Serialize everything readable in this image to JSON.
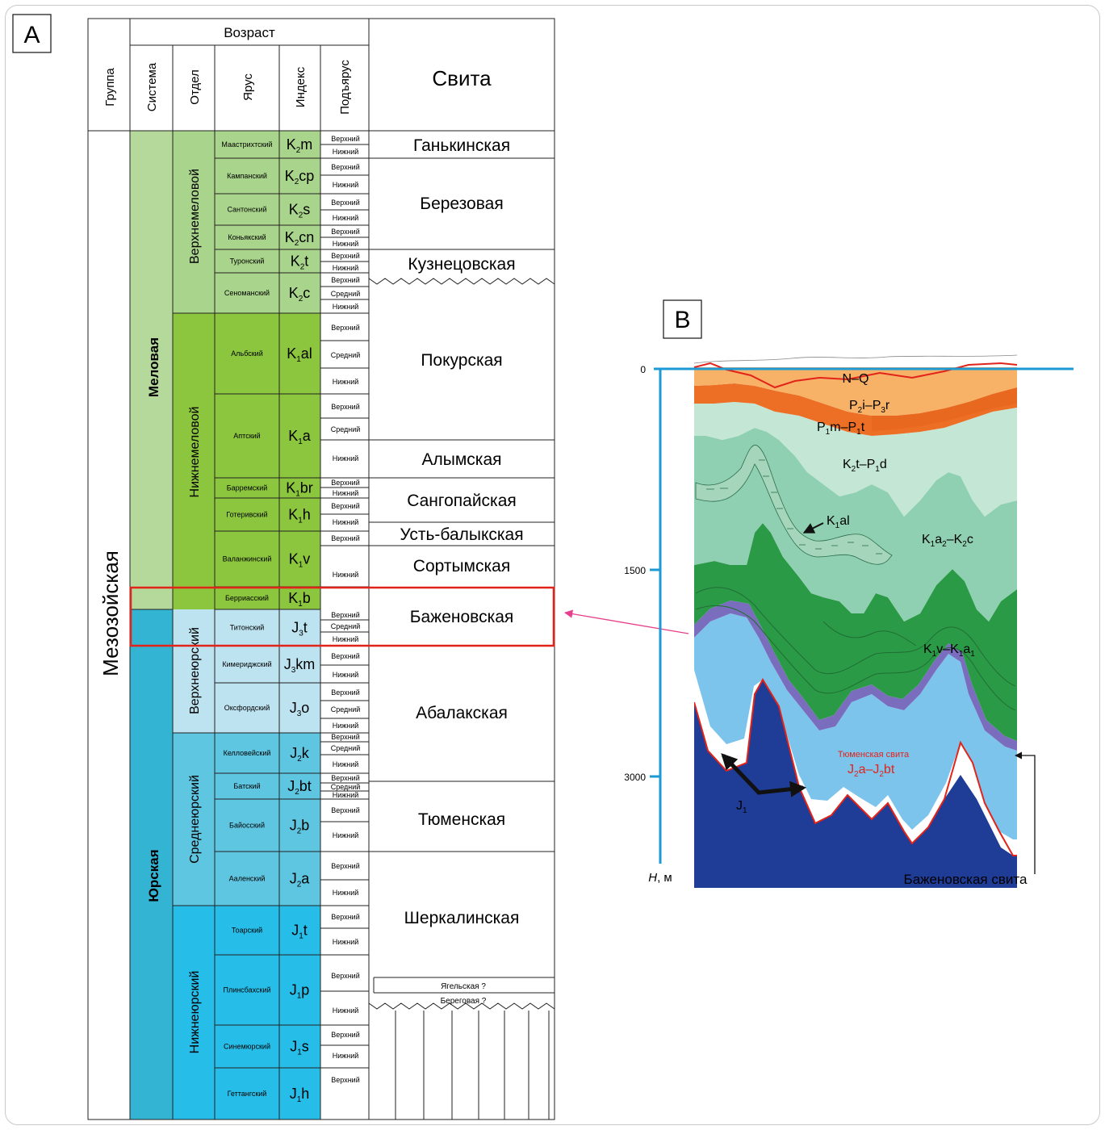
{
  "panel_a": {
    "label": "A",
    "header": {
      "age": "Возраст",
      "group": "Группа",
      "system": "Система",
      "series": "Отдел",
      "stage": "Ярус",
      "index": "Индекс",
      "substage": "Подъярус",
      "suite": "Свита"
    },
    "group_name": "Мезозойская",
    "systems": [
      {
        "name": "Меловая",
        "color": "#b5d99a"
      },
      {
        "name": "Юрская",
        "color": "#34b4d3"
      }
    ],
    "series": [
      {
        "name": "Верхнемеловой",
        "color": "#a9d48b"
      },
      {
        "name": "Нижнемеловой",
        "color": "#8cc63f"
      },
      {
        "name": "Верхнеюрский",
        "color": "#bde3f0"
      },
      {
        "name": "Среднеюрский",
        "color": "#5fc6e2"
      },
      {
        "name": "Нижнеюрский",
        "color": "#26bde8"
      }
    ],
    "stages": [
      {
        "name": "Маастрихтский",
        "idx": "K",
        "sub": "2",
        "rest": "m"
      },
      {
        "name": "Кампанский",
        "idx": "K",
        "sub": "2",
        "rest": "cp"
      },
      {
        "name": "Сантонский",
        "idx": "K",
        "sub": "2",
        "rest": "s"
      },
      {
        "name": "Коньякский",
        "idx": "K",
        "sub": "2",
        "rest": "cn"
      },
      {
        "name": "Туронский",
        "idx": "K",
        "sub": "2",
        "rest": "t"
      },
      {
        "name": "Сеноманский",
        "idx": "K",
        "sub": "2",
        "rest": "c"
      },
      {
        "name": "Альбский",
        "idx": "K",
        "sub": "1",
        "rest": "al"
      },
      {
        "name": "Аптский",
        "idx": "K",
        "sub": "1",
        "rest": "a"
      },
      {
        "name": "Барремский",
        "idx": "K",
        "sub": "1",
        "rest": "br"
      },
      {
        "name": "Готеривский",
        "idx": "K",
        "sub": "1",
        "rest": "h"
      },
      {
        "name": "Валанжинский",
        "idx": "K",
        "sub": "1",
        "rest": "v"
      },
      {
        "name": "Берриасский",
        "idx": "K",
        "sub": "1",
        "rest": "b"
      },
      {
        "name": "Титонский",
        "idx": "J",
        "sub": "3",
        "rest": "t"
      },
      {
        "name": "Кимериджский",
        "idx": "J",
        "sub": "3",
        "rest": "km"
      },
      {
        "name": "Оксфордский",
        "idx": "J",
        "sub": "3",
        "rest": "o"
      },
      {
        "name": "Келловейский",
        "idx": "J",
        "sub": "2",
        "rest": "k"
      },
      {
        "name": "Батский",
        "idx": "J",
        "sub": "2",
        "rest": "bt"
      },
      {
        "name": "Байосский",
        "idx": "J",
        "sub": "2",
        "rest": "b"
      },
      {
        "name": "Ааленский",
        "idx": "J",
        "sub": "2",
        "rest": "a"
      },
      {
        "name": "Тоарский",
        "idx": "J",
        "sub": "1",
        "rest": "t"
      },
      {
        "name": "Плинсбахский",
        "idx": "J",
        "sub": "1",
        "rest": "p"
      },
      {
        "name": "Синемюрский",
        "idx": "J",
        "sub": "1",
        "rest": "s"
      },
      {
        "name": "Геттангский",
        "idx": "J",
        "sub": "1",
        "rest": "h"
      }
    ],
    "substages": {
      "upper": "Верхний",
      "middle": "Средний",
      "lower": "Нижний"
    },
    "suites": [
      "Ганькинская",
      "Березовая",
      "Кузнецовская",
      "Покурская",
      "Алымская",
      "Сангопайская",
      "Усть-балыкская",
      "Сортымская",
      "Баженовская",
      "Абалакская",
      "Тюменская",
      "Шеркалинская",
      "Ягельская ?",
      "Береговая ?"
    ]
  },
  "panel_b": {
    "label": "B",
    "axis_ticks": [
      "0",
      "1500",
      "3000"
    ],
    "axis_title_h": "H",
    "axis_title_unit": ", м",
    "layers": {
      "nq": "N–Q",
      "p2p3": {
        "a": "P",
        "as": "2",
        "b": "i–P",
        "bs": "3",
        "c": "r"
      },
      "p1": {
        "a": "P",
        "as": "1",
        "b": "m–P",
        "bs": "1",
        "c": "t"
      },
      "k2p1": {
        "a": "K",
        "as": "2",
        "b": "t–P",
        "bs": "1",
        "c": "d"
      },
      "k1al": {
        "a": "K",
        "as": "1",
        "b": "al"
      },
      "k1a2": {
        "a": "K",
        "as": "1",
        "b": "a",
        "bs": "2",
        "c": "–K",
        "cs": "2",
        "d": "c"
      },
      "k1v": {
        "a": "K",
        "as": "1",
        "b": "v–K",
        "bs": "1",
        "c": "a",
        "cs": "1"
      },
      "tyumen_name": "Тюменская свита",
      "tyumen_idx": {
        "a": "J",
        "as": "2",
        "b": "a–J",
        "bs": "2",
        "c": "bt"
      },
      "j1": {
        "a": "J",
        "as": "1"
      },
      "bazhen": "Баженовская свита"
    },
    "colors": {
      "quaternary": "#f7b267",
      "paleogene": "#ec6f25",
      "light_green": "#c4e6d5",
      "mid_green": "#8fcfb2",
      "dark_green": "#2b9a47",
      "bazhenov": "#7a6dbd",
      "tyumen": "#7cc4ec",
      "j1": "#1f3c96",
      "axis": "#1c9ad6",
      "contour": "#e2231a"
    }
  }
}
